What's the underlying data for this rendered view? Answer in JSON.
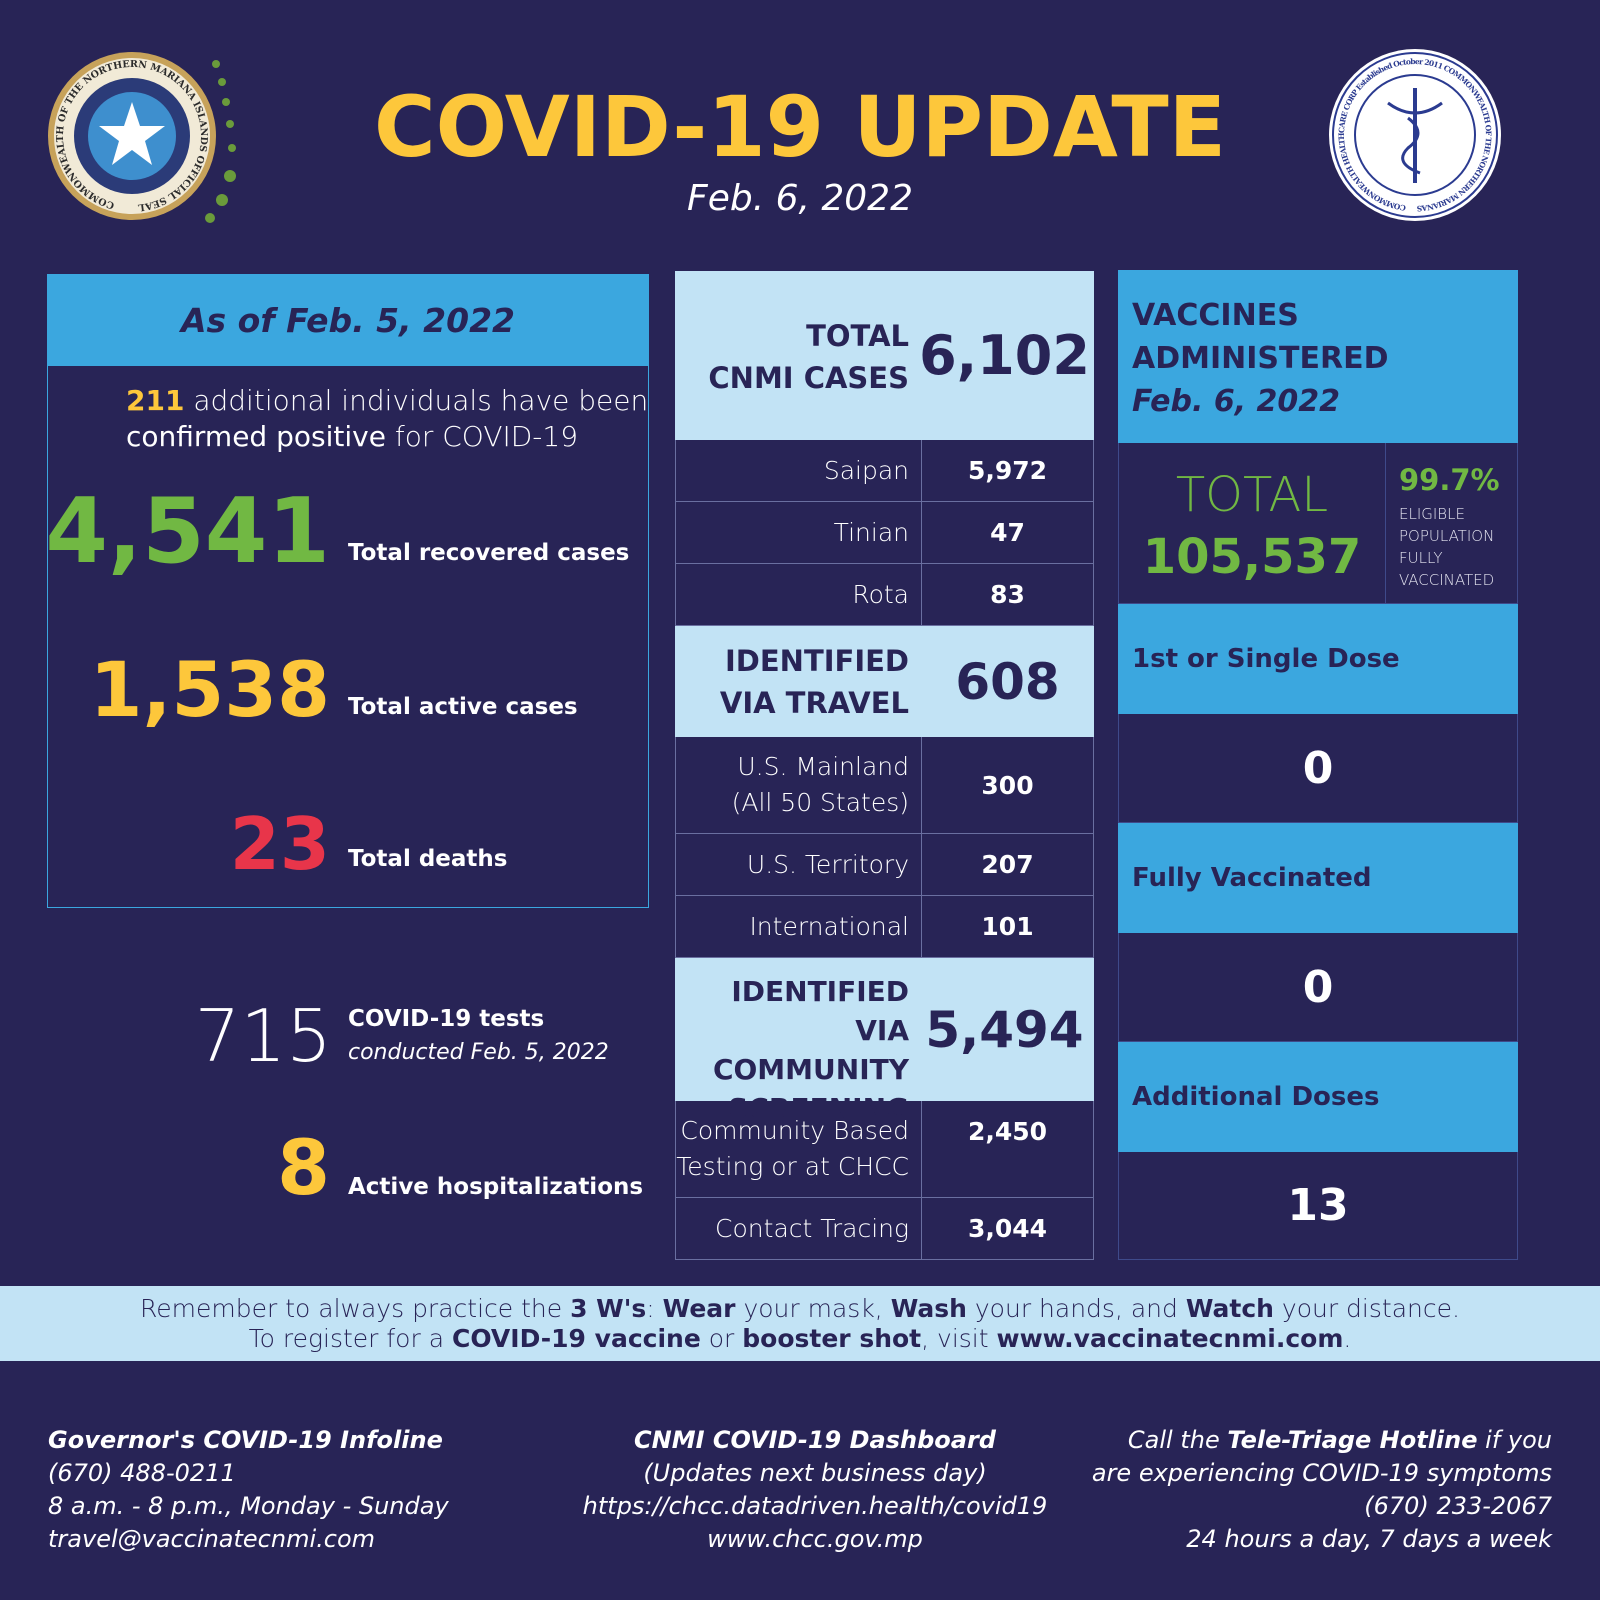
{
  "header": {
    "title": "COVID-19 UPDATE",
    "date": "Feb. 6, 2022",
    "left_seal": "CNMI official seal",
    "left_seal_text": "COMMONWEALTH OF THE NORTHERN MARIANA ISLANDS OFFICIAL SEAL",
    "right_seal": "Commonwealth Healthcare Corp logo",
    "right_seal_text": "COMMONWEALTH HEALTHCARE CORP Established October 2011 COMMONWEALTH OF THE NORTHERN MARIANAS"
  },
  "summary": {
    "heading": "As of Feb. 5, 2022",
    "new_count": "211",
    "new_text_1": " additional individuals have been",
    "new_text_bold": "confirmed positive",
    "new_text_2": " for COVID-19",
    "recovered": "4,541",
    "recovered_label": "Total recovered cases",
    "active": "1,538",
    "active_label": "Total active cases",
    "deaths": "23",
    "deaths_label": "Total deaths",
    "tests": "715",
    "tests_label": "COVID-19 tests",
    "tests_sub": "conducted ",
    "tests_date": "Feb. 5, 2022",
    "hosp": "8",
    "hosp_label": "Active hospitalizations"
  },
  "cases": {
    "total_label_1": "TOTAL",
    "total_label_2": "CNMI CASES",
    "total": "6,102",
    "islands": [
      {
        "label": "Saipan",
        "value": "5,972"
      },
      {
        "label": "Tinian",
        "value": "47"
      },
      {
        "label": "Rota",
        "value": "83"
      }
    ],
    "travel_label_1": "IDENTIFIED",
    "travel_label_2": "VIA TRAVEL",
    "travel": "608",
    "travel_rows": [
      {
        "label_1": "U.S. Mainland",
        "label_2": "(All 50 States)",
        "value": "300"
      },
      {
        "label": "U.S. Territory",
        "value": "207"
      },
      {
        "label": "International",
        "value": "101"
      }
    ],
    "community_label_1": "IDENTIFIED VIA",
    "community_label_2": "COMMUNITY",
    "community_label_3": "SCREENING",
    "community": "5,494",
    "community_rows": [
      {
        "label_1": "Community Based",
        "label_2": "Testing or at CHCC",
        "value": "2,450"
      },
      {
        "label": "Contact Tracing",
        "value": "3,044"
      }
    ]
  },
  "vaccines": {
    "title_1": "VACCINES",
    "title_2": "ADMINISTERED",
    "date": "Feb. 6, 2022",
    "total_label": "TOTAL",
    "total": "105,537",
    "pct": "99.7%",
    "pct_l1": "ELIGIBLE",
    "pct_l2": "POPULATION",
    "pct_l3": "FULLY",
    "pct_l4": "VACCINATED",
    "rows": [
      {
        "label": "1st or Single Dose",
        "value": "0"
      },
      {
        "label": "Fully Vaccinated",
        "value": "0"
      },
      {
        "label": "Additional Doses",
        "value": "13"
      }
    ]
  },
  "banner": {
    "a": "Remember to always practice the ",
    "b": "3 W's",
    "c": ": ",
    "d": "Wear",
    "e": " your mask, ",
    "f": "Wash",
    "g": " your hands, and ",
    "h": "Watch",
    "i": " your distance.",
    "j": "To register for a ",
    "k": "COVID-19 vaccine",
    "l": " or ",
    "m": "booster shot",
    "n": ", visit ",
    "o": "www.vaccinatecnmi.com",
    "p": "."
  },
  "footer": {
    "left": {
      "title": "Governor's COVID-19 Infoline",
      "phone": "(670) 488-0211",
      "hours": "8 a.m. - 8 p.m., Monday - Sunday",
      "email": "travel@vaccinatecnmi.com"
    },
    "center": {
      "title": "CNMI COVID-19 Dashboard",
      "note": "(Updates next business day)",
      "url": "https://chcc.datadriven.health/covid19",
      "site": "www.chcc.gov.mp"
    },
    "right": {
      "a": "Call the ",
      "b": "Tele-Triage Hotline",
      "c": " if you",
      "d": "are experiencing COVID-19 symptoms",
      "phone": "(670) 233-2067",
      "hours": "24 hours a day, 7 days a week"
    }
  },
  "colors": {
    "background": "#282456",
    "yellow": "#fdc73b",
    "green": "#71b843",
    "red": "#e8354a",
    "blue": "#3ba7df",
    "light_blue": "#c2e3f5"
  }
}
